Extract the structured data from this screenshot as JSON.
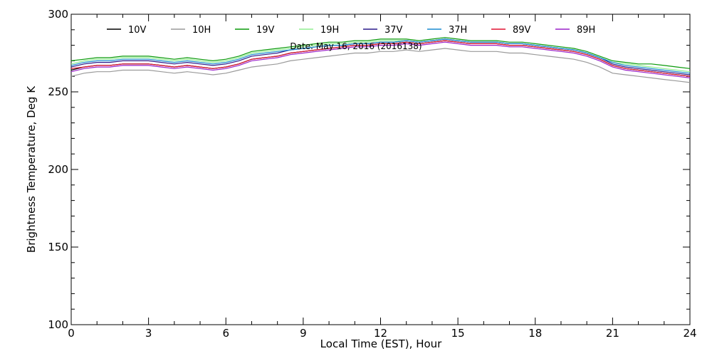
{
  "chart_data": {
    "type": "line",
    "xlabel": "Local Time (EST), Hour",
    "ylabel": "Brightness Temperature, Deg K",
    "xlim": [
      0,
      24
    ],
    "ylim": [
      100,
      300
    ],
    "xticks": [
      0,
      3,
      6,
      9,
      12,
      15,
      18,
      21,
      24
    ],
    "yticks": [
      100,
      150,
      200,
      250,
      300
    ],
    "grid": false,
    "legend_position": "top",
    "annotation": "Date: May 16, 2016 (2016138)",
    "x": [
      0,
      0.5,
      1,
      1.5,
      2,
      2.5,
      3,
      3.5,
      4,
      4.5,
      5,
      5.5,
      6,
      6.5,
      7,
      7.5,
      8,
      8.5,
      9,
      9.5,
      10,
      10.5,
      11,
      11.5,
      12,
      12.5,
      13,
      13.5,
      14,
      14.5,
      15,
      15.5,
      16,
      16.5,
      17,
      17.5,
      18,
      18.5,
      19,
      19.5,
      20,
      20.5,
      21,
      21.5,
      22,
      22.5,
      23,
      23.5,
      24
    ],
    "series": [
      {
        "name": "10V",
        "color": "#000000",
        "values": [
          264,
          266,
          267,
          267,
          268,
          268,
          268,
          267,
          266,
          267,
          266,
          265,
          266,
          268,
          271,
          272,
          273,
          275,
          276,
          277,
          278,
          279,
          280,
          280,
          281,
          281,
          282,
          281,
          282,
          283,
          282,
          281,
          281,
          281,
          280,
          280,
          279,
          278,
          277,
          276,
          274,
          271,
          267,
          265,
          264,
          263,
          262,
          261,
          260
        ]
      },
      {
        "name": "10H",
        "color": "#9a9a9a",
        "values": [
          260,
          262,
          263,
          263,
          264,
          264,
          264,
          263,
          262,
          263,
          262,
          261,
          262,
          264,
          266,
          267,
          268,
          270,
          271,
          272,
          273,
          274,
          275,
          275,
          276,
          276,
          277,
          276,
          277,
          278,
          277,
          276,
          276,
          276,
          275,
          275,
          274,
          273,
          272,
          271,
          269,
          266,
          262,
          261,
          260,
          259,
          258,
          257,
          256
        ]
      },
      {
        "name": "19V",
        "color": "#0a9a0a",
        "values": [
          270,
          271,
          272,
          272,
          273,
          273,
          273,
          272,
          271,
          272,
          271,
          270,
          271,
          273,
          276,
          277,
          278,
          279,
          280,
          281,
          282,
          282,
          283,
          283,
          284,
          284,
          284,
          283,
          284,
          285,
          284,
          283,
          283,
          283,
          282,
          282,
          281,
          280,
          279,
          278,
          276,
          273,
          270,
          269,
          268,
          268,
          267,
          266,
          265
        ]
      },
      {
        "name": "19H",
        "color": "#90ee90",
        "values": [
          268,
          270,
          271,
          271,
          272,
          272,
          272,
          271,
          270,
          271,
          270,
          269,
          270,
          272,
          275,
          276,
          277,
          278,
          279,
          280,
          281,
          281,
          282,
          282,
          283,
          283,
          283,
          282,
          283,
          284,
          283,
          282,
          282,
          282,
          281,
          281,
          280,
          279,
          278,
          277,
          275,
          272,
          269,
          268,
          267,
          266,
          265,
          264,
          263
        ]
      },
      {
        "name": "37V",
        "color": "#2a1a8a",
        "values": [
          266,
          268,
          269,
          269,
          270,
          270,
          270,
          269,
          268,
          269,
          268,
          267,
          268,
          270,
          273,
          274,
          275,
          277,
          278,
          279,
          280,
          280,
          281,
          281,
          282,
          282,
          283,
          282,
          283,
          284,
          283,
          282,
          282,
          282,
          281,
          281,
          280,
          279,
          278,
          277,
          275,
          272,
          268,
          266,
          265,
          264,
          263,
          262,
          261
        ]
      },
      {
        "name": "37H",
        "color": "#1a8ad0",
        "values": [
          267,
          269,
          270,
          270,
          271,
          271,
          271,
          270,
          269,
          270,
          269,
          268,
          269,
          271,
          274,
          275,
          276,
          277,
          278,
          279,
          280,
          280,
          281,
          281,
          282,
          282,
          283,
          282,
          283,
          284,
          283,
          282,
          282,
          282,
          281,
          281,
          280,
          279,
          278,
          277,
          275,
          272,
          269,
          267,
          266,
          265,
          264,
          263,
          262
        ]
      },
      {
        "name": "89V",
        "color": "#e01030",
        "values": [
          265,
          266,
          267,
          267,
          268,
          268,
          268,
          267,
          266,
          267,
          266,
          265,
          266,
          268,
          271,
          272,
          273,
          275,
          276,
          277,
          278,
          279,
          280,
          280,
          281,
          281,
          282,
          281,
          282,
          283,
          282,
          281,
          281,
          281,
          280,
          280,
          279,
          278,
          277,
          276,
          274,
          271,
          267,
          265,
          264,
          263,
          262,
          261,
          260
        ]
      },
      {
        "name": "89H",
        "color": "#9a20c8",
        "values": [
          263,
          265,
          266,
          266,
          267,
          267,
          267,
          266,
          265,
          266,
          265,
          264,
          265,
          267,
          270,
          271,
          272,
          274,
          275,
          276,
          277,
          278,
          279,
          279,
          280,
          280,
          281,
          280,
          281,
          282,
          281,
          280,
          280,
          280,
          279,
          279,
          278,
          277,
          276,
          275,
          273,
          270,
          266,
          264,
          263,
          262,
          261,
          260,
          259
        ]
      }
    ]
  }
}
